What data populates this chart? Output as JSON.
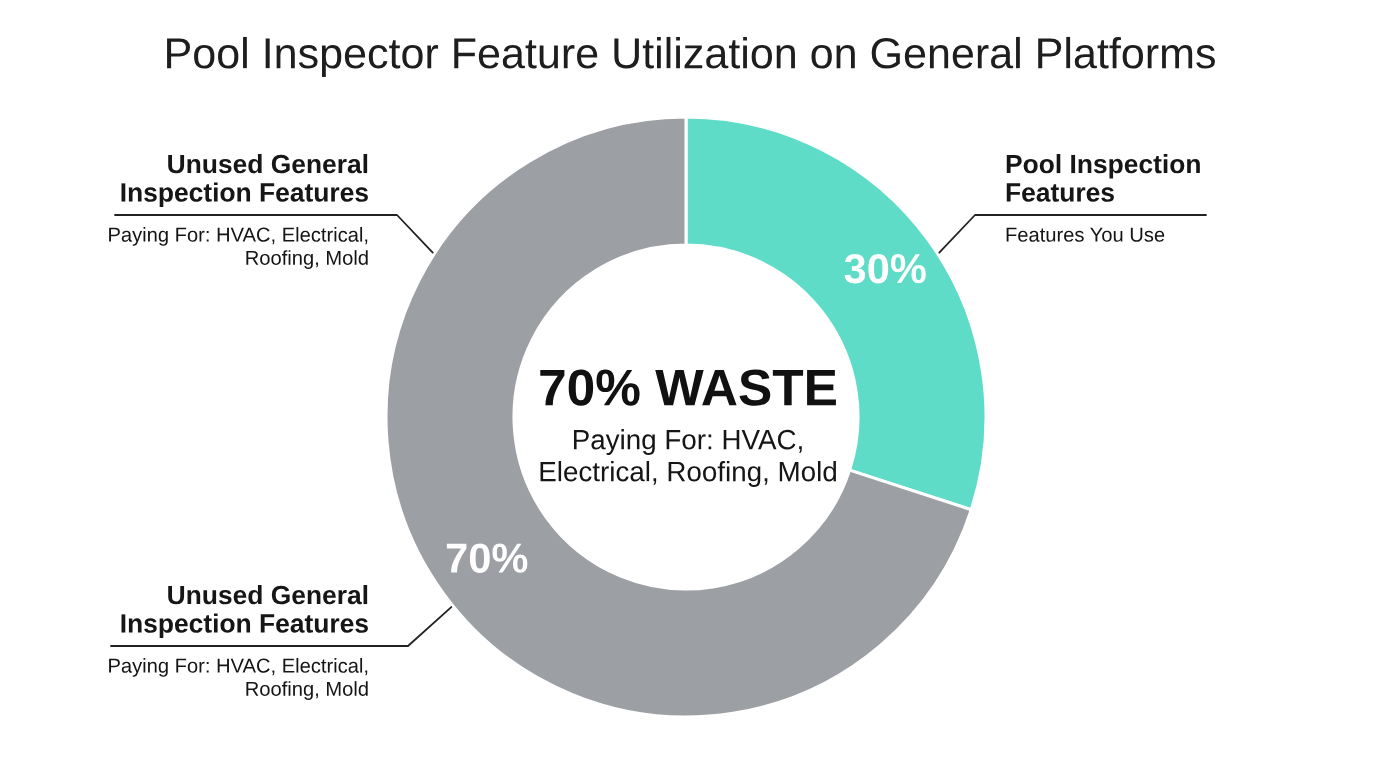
{
  "chart_data": {
    "type": "donut",
    "title": "Pool Inspector Feature Utilization on General Platforms",
    "categories": [
      "Pool Inspection Features",
      "Unused General Inspection Features"
    ],
    "values": [
      30,
      70
    ],
    "colors": [
      "#5edcc7",
      "#9c9fa4"
    ],
    "value_labels": [
      "30%",
      "70%"
    ],
    "annotations": [
      "Features You Use",
      "Paying For: HVAC, Electrical, Roofing, Mold",
      "Unused General Inspection Features",
      "Paying For: HVAC, Electrical, Roofing, Mold",
      "70% WASTE",
      "Paying For: HVAC, Electrical, Roofing, Mold"
    ]
  }
}
